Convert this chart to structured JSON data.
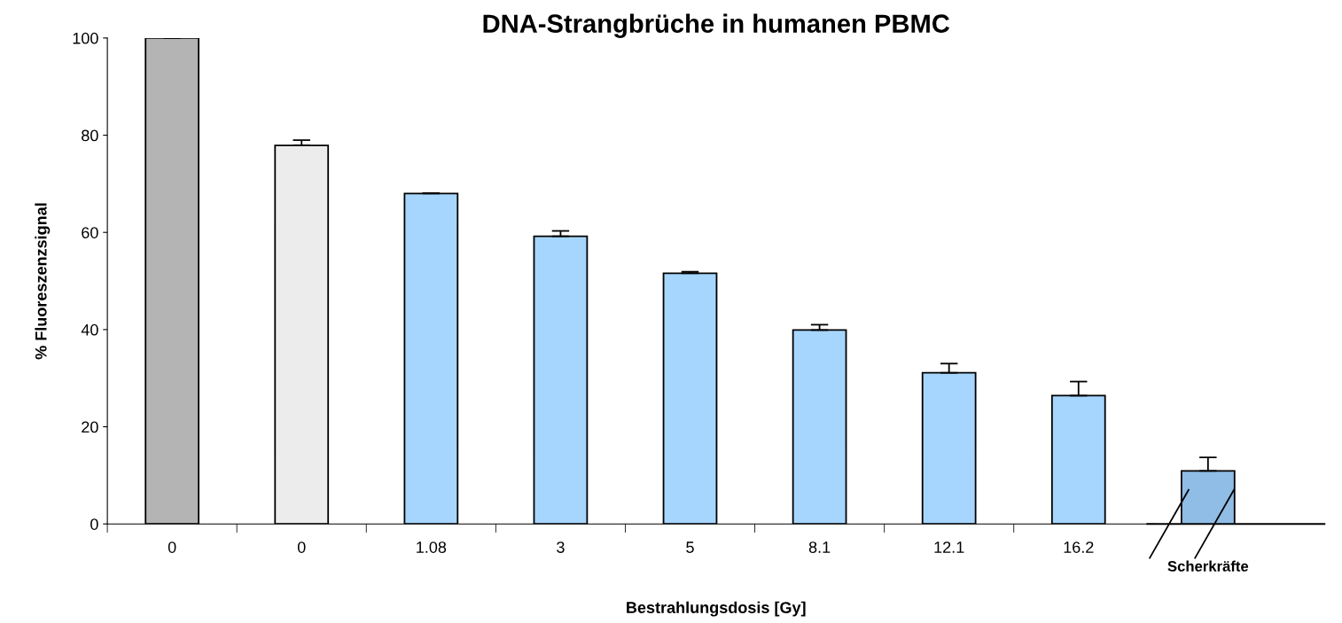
{
  "chart_data": {
    "type": "bar",
    "title": "DNA-Strangbrüche in humanen PBMC",
    "xlabel": "Bestrahlungsdosis [Gy]",
    "ylabel": "% Fluoreszenzsignal",
    "categories": [
      "0",
      "0",
      "1.08",
      "3",
      "5",
      "8.1",
      "12.1",
      "16.2",
      "Scherkräfte"
    ],
    "values": [
      100,
      77.9,
      68.0,
      59.2,
      51.6,
      39.9,
      31.1,
      26.4,
      10.9
    ],
    "errors": [
      0,
      1.1,
      0.1,
      1.1,
      0.3,
      1.1,
      1.9,
      2.9,
      2.8
    ],
    "colors": [
      "#b4b4b4",
      "#ececec",
      "#a6d6fe",
      "#a6d6fe",
      "#a6d6fe",
      "#a6d6fe",
      "#a6d6fe",
      "#a6d6fe",
      "#8fbde6"
    ],
    "ylim": [
      0,
      100
    ],
    "yticks": [
      0,
      20,
      40,
      60,
      80,
      100
    ],
    "grid": false,
    "legend": false
  }
}
